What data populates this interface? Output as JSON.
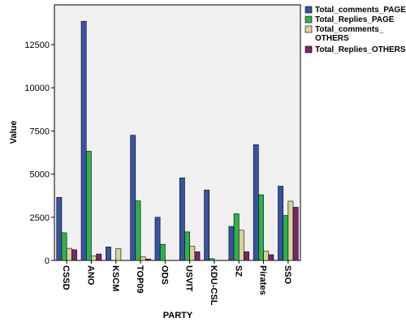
{
  "chart_data": {
    "type": "bar",
    "xlabel": "PARTY",
    "ylabel": "Value",
    "ylim": [
      0,
      14800
    ],
    "yticks": [
      0,
      2500,
      5000,
      7500,
      10000,
      12500
    ],
    "ytick_labels": [
      "0",
      "2500",
      "5000",
      "7500",
      "10000",
      "12500"
    ],
    "grid": false,
    "legend_position": "right",
    "categories": [
      "CSSD",
      "ANO",
      "KSCM",
      "TOP09",
      "ODS",
      "USVIT",
      "KDU-CSL",
      "SZ",
      "Pirates",
      "SSO"
    ],
    "series": [
      {
        "name": "Total_comments_PAGE",
        "color": "#3953a4",
        "values": [
          3650,
          13850,
          780,
          7250,
          2500,
          4780,
          4080,
          1970,
          6700,
          4300
        ]
      },
      {
        "name": "Total_Replies_PAGE",
        "color": "#2db34a",
        "values": [
          1600,
          6320,
          0,
          3450,
          930,
          1650,
          100,
          2700,
          3800,
          2600
        ]
      },
      {
        "name": "Total_comments_ OTHERS",
        "color": "#d9d49c",
        "values": [
          700,
          250,
          680,
          200,
          0,
          820,
          0,
          1750,
          530,
          3430
        ]
      },
      {
        "name": "Total_Replies_OTHERS",
        "color": "#7d2370",
        "values": [
          620,
          370,
          0,
          80,
          0,
          500,
          0,
          500,
          330,
          3080
        ]
      }
    ]
  }
}
